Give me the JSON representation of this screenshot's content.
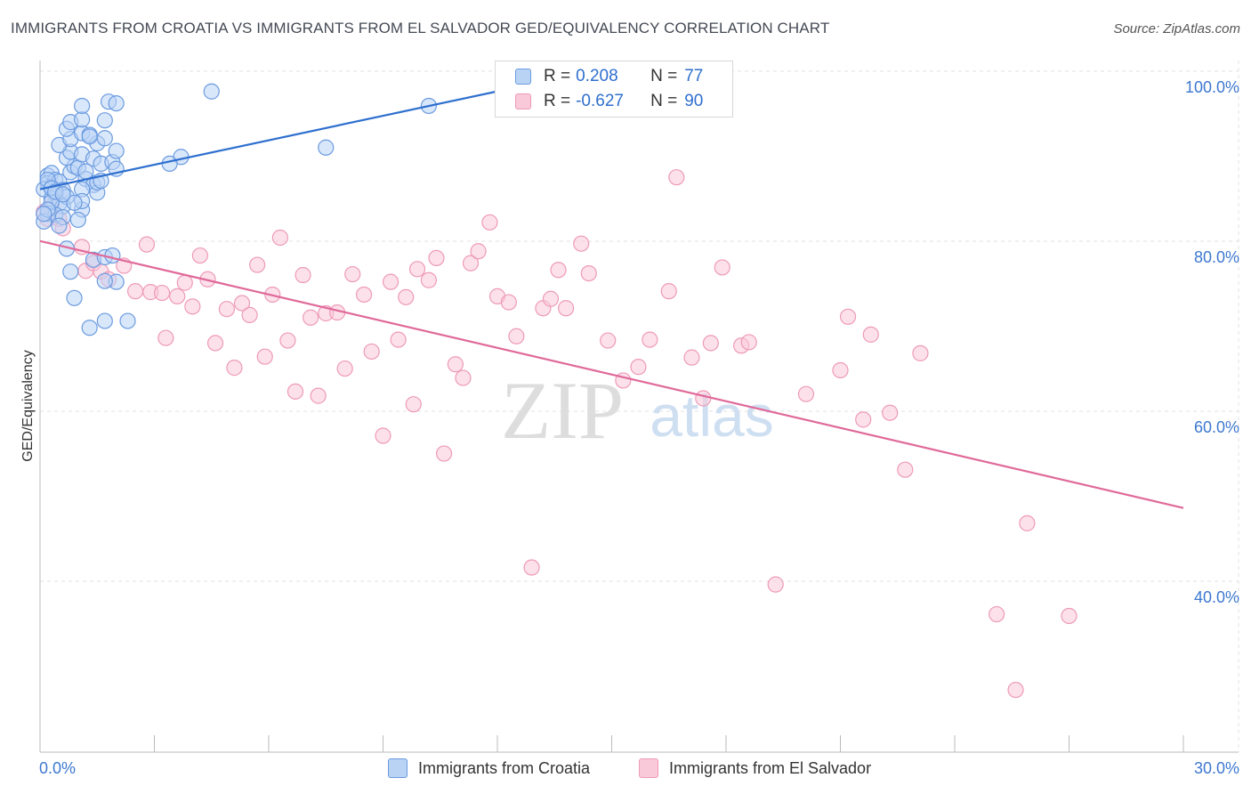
{
  "header": {
    "title": "IMMIGRANTS FROM CROATIA VS IMMIGRANTS FROM EL SALVADOR GED/EQUIVALENCY CORRELATION CHART",
    "source": "Source: ZipAtlas.com"
  },
  "legend": {
    "rows": [
      {
        "r_label": "R =",
        "r_value": "0.208",
        "n_label": "N =",
        "n_value": "77"
      },
      {
        "r_label": "R =",
        "r_value": "-0.627",
        "n_label": "N =",
        "n_value": "90"
      }
    ]
  },
  "watermark": {
    "zip": "ZIP",
    "atlas": "atlas"
  },
  "colors": {
    "blue_fill": "#b9d3f5",
    "blue_stroke": "#6b9be0",
    "blue_line": "#2e6fcf",
    "pink_fill": "#f9c9d9",
    "pink_stroke": "#ee9ab8",
    "pink_line": "#e0699a",
    "axis_text": "#3d78d0",
    "grid": "#e2e2e2"
  },
  "chart_data": {
    "type": "scatter",
    "title": "IMMIGRANTS FROM CROATIA VS IMMIGRANTS FROM EL SALVADOR GED/EQUIVALENCY CORRELATION CHART",
    "xlabel": "",
    "ylabel": "GED/Equivalency",
    "xlim": [
      0,
      30
    ],
    "ylim": [
      20,
      102
    ],
    "x_tick_labels": [
      {
        "value": 0,
        "label": "0.0%"
      },
      {
        "value": 30,
        "label": "30.0%"
      }
    ],
    "y_tick_labels": [
      {
        "value": 100,
        "label": "100.0%"
      },
      {
        "value": 80,
        "label": "80.0%"
      },
      {
        "value": 60,
        "label": "60.0%"
      },
      {
        "value": 40,
        "label": "40.0%"
      }
    ],
    "series": [
      {
        "name": "Immigrants from Croatia",
        "color": "blue",
        "r": 0.208,
        "n": 77,
        "trend": {
          "x": [
            0,
            12.3
          ],
          "y": [
            87.9,
            99.7
          ]
        },
        "points": [
          [
            0.2,
            89.5
          ],
          [
            0.3,
            89.8
          ],
          [
            0.2,
            88.6
          ],
          [
            0.4,
            89.0
          ],
          [
            0.3,
            88.2
          ],
          [
            0.5,
            88.8
          ],
          [
            0.6,
            87.8
          ],
          [
            0.4,
            87.2
          ],
          [
            0.1,
            87.9
          ],
          [
            0.3,
            86.8
          ],
          [
            0.5,
            86.2
          ],
          [
            0.7,
            87.0
          ],
          [
            0.6,
            85.9
          ],
          [
            0.2,
            85.0
          ],
          [
            0.4,
            84.9
          ],
          [
            0.6,
            84.6
          ],
          [
            0.1,
            84.1
          ],
          [
            0.5,
            83.6
          ],
          [
            0.8,
            89.9
          ],
          [
            0.9,
            90.6
          ],
          [
            1.0,
            90.4
          ],
          [
            1.2,
            89.1
          ],
          [
            1.4,
            88.4
          ],
          [
            1.1,
            87.9
          ],
          [
            1.5,
            87.5
          ],
          [
            0.7,
            91.6
          ],
          [
            0.8,
            92.3
          ],
          [
            1.1,
            92.0
          ],
          [
            1.4,
            91.5
          ],
          [
            1.6,
            90.9
          ],
          [
            1.9,
            91.1
          ],
          [
            1.5,
            93.3
          ],
          [
            1.7,
            93.9
          ],
          [
            2.0,
            92.4
          ],
          [
            0.5,
            93.1
          ],
          [
            0.8,
            93.8
          ],
          [
            1.1,
            94.5
          ],
          [
            1.3,
            94.3
          ],
          [
            1.3,
            94.1
          ],
          [
            0.7,
            95.0
          ],
          [
            0.8,
            95.8
          ],
          [
            1.1,
            96.1
          ],
          [
            1.7,
            96.0
          ],
          [
            1.1,
            97.7
          ],
          [
            1.8,
            98.2
          ],
          [
            2.0,
            98.0
          ],
          [
            4.5,
            99.4
          ],
          [
            10.2,
            97.7
          ],
          [
            7.5,
            92.8
          ],
          [
            3.7,
            91.7
          ],
          [
            3.4,
            90.9
          ],
          [
            0.7,
            80.9
          ],
          [
            0.8,
            78.2
          ],
          [
            0.9,
            75.1
          ],
          [
            1.3,
            71.6
          ],
          [
            1.7,
            72.4
          ],
          [
            2.3,
            72.4
          ],
          [
            1.4,
            79.6
          ],
          [
            1.7,
            79.9
          ],
          [
            1.9,
            80.1
          ],
          [
            2.0,
            77.0
          ],
          [
            1.7,
            77.1
          ],
          [
            1.1,
            85.5
          ],
          [
            1.1,
            86.5
          ],
          [
            0.9,
            86.3
          ],
          [
            0.3,
            86.4
          ],
          [
            0.2,
            85.5
          ],
          [
            0.1,
            85.0
          ],
          [
            1.5,
            88.7
          ],
          [
            1.6,
            88.9
          ],
          [
            1.2,
            90.0
          ],
          [
            2.0,
            90.3
          ],
          [
            0.2,
            89.0
          ],
          [
            0.3,
            88.0
          ],
          [
            0.4,
            87.6
          ],
          [
            1.0,
            84.3
          ],
          [
            0.6,
            87.3
          ]
        ]
      },
      {
        "name": "Immigrants from El Salvador",
        "color": "pink",
        "r": -0.627,
        "n": 90,
        "trend": {
          "x": [
            0,
            30
          ],
          "y": [
            81.8,
            50.4
          ]
        },
        "points": [
          [
            0.1,
            85.2
          ],
          [
            0.2,
            84.4
          ],
          [
            0.3,
            85.9
          ],
          [
            0.5,
            84.4
          ],
          [
            0.6,
            83.3
          ],
          [
            1.1,
            81.1
          ],
          [
            1.2,
            78.3
          ],
          [
            1.4,
            79.2
          ],
          [
            1.6,
            78.2
          ],
          [
            1.8,
            77.3
          ],
          [
            2.2,
            78.9
          ],
          [
            2.5,
            75.9
          ],
          [
            2.8,
            81.4
          ],
          [
            2.9,
            75.8
          ],
          [
            3.2,
            75.7
          ],
          [
            3.3,
            70.4
          ],
          [
            3.6,
            75.3
          ],
          [
            3.8,
            76.9
          ],
          [
            4.0,
            74.1
          ],
          [
            4.2,
            80.1
          ],
          [
            4.4,
            77.3
          ],
          [
            4.6,
            69.8
          ],
          [
            4.9,
            73.8
          ],
          [
            5.1,
            66.9
          ],
          [
            5.3,
            74.5
          ],
          [
            5.5,
            73.1
          ],
          [
            5.7,
            79.0
          ],
          [
            5.9,
            68.2
          ],
          [
            6.1,
            75.5
          ],
          [
            6.3,
            82.2
          ],
          [
            6.5,
            70.1
          ],
          [
            6.7,
            64.1
          ],
          [
            6.9,
            77.8
          ],
          [
            7.1,
            72.8
          ],
          [
            7.3,
            63.6
          ],
          [
            7.5,
            73.3
          ],
          [
            7.8,
            73.4
          ],
          [
            8.0,
            66.8
          ],
          [
            8.2,
            77.9
          ],
          [
            8.5,
            75.5
          ],
          [
            8.7,
            68.8
          ],
          [
            9.0,
            58.9
          ],
          [
            9.2,
            77.0
          ],
          [
            9.4,
            70.2
          ],
          [
            9.6,
            75.2
          ],
          [
            9.8,
            62.6
          ],
          [
            9.9,
            78.5
          ],
          [
            10.2,
            77.2
          ],
          [
            10.4,
            79.8
          ],
          [
            10.6,
            56.8
          ],
          [
            10.9,
            67.3
          ],
          [
            11.1,
            65.7
          ],
          [
            11.3,
            79.2
          ],
          [
            11.5,
            80.6
          ],
          [
            11.8,
            84.0
          ],
          [
            12.0,
            75.3
          ],
          [
            12.3,
            74.6
          ],
          [
            12.5,
            70.6
          ],
          [
            12.9,
            43.4
          ],
          [
            13.2,
            73.9
          ],
          [
            13.4,
            75.0
          ],
          [
            13.6,
            78.4
          ],
          [
            13.8,
            73.9
          ],
          [
            14.2,
            81.5
          ],
          [
            14.4,
            78.0
          ],
          [
            14.9,
            70.1
          ],
          [
            15.3,
            65.4
          ],
          [
            15.7,
            67.0
          ],
          [
            16.0,
            70.2
          ],
          [
            16.5,
            75.9
          ],
          [
            16.7,
            89.3
          ],
          [
            17.1,
            68.1
          ],
          [
            17.4,
            63.3
          ],
          [
            17.6,
            69.8
          ],
          [
            17.9,
            78.7
          ],
          [
            18.4,
            69.5
          ],
          [
            18.6,
            69.9
          ],
          [
            19.3,
            41.4
          ],
          [
            20.1,
            63.8
          ],
          [
            21.0,
            66.6
          ],
          [
            21.2,
            72.9
          ],
          [
            21.6,
            60.8
          ],
          [
            21.8,
            70.8
          ],
          [
            22.3,
            61.6
          ],
          [
            22.7,
            54.9
          ],
          [
            23.1,
            68.6
          ],
          [
            25.1,
            37.9
          ],
          [
            25.9,
            48.6
          ],
          [
            25.6,
            29.0
          ],
          [
            27.0,
            37.7
          ]
        ]
      }
    ]
  },
  "bottom_legend": [
    {
      "label": "Immigrants from Croatia"
    },
    {
      "label": "Immigrants from El Salvador"
    }
  ]
}
